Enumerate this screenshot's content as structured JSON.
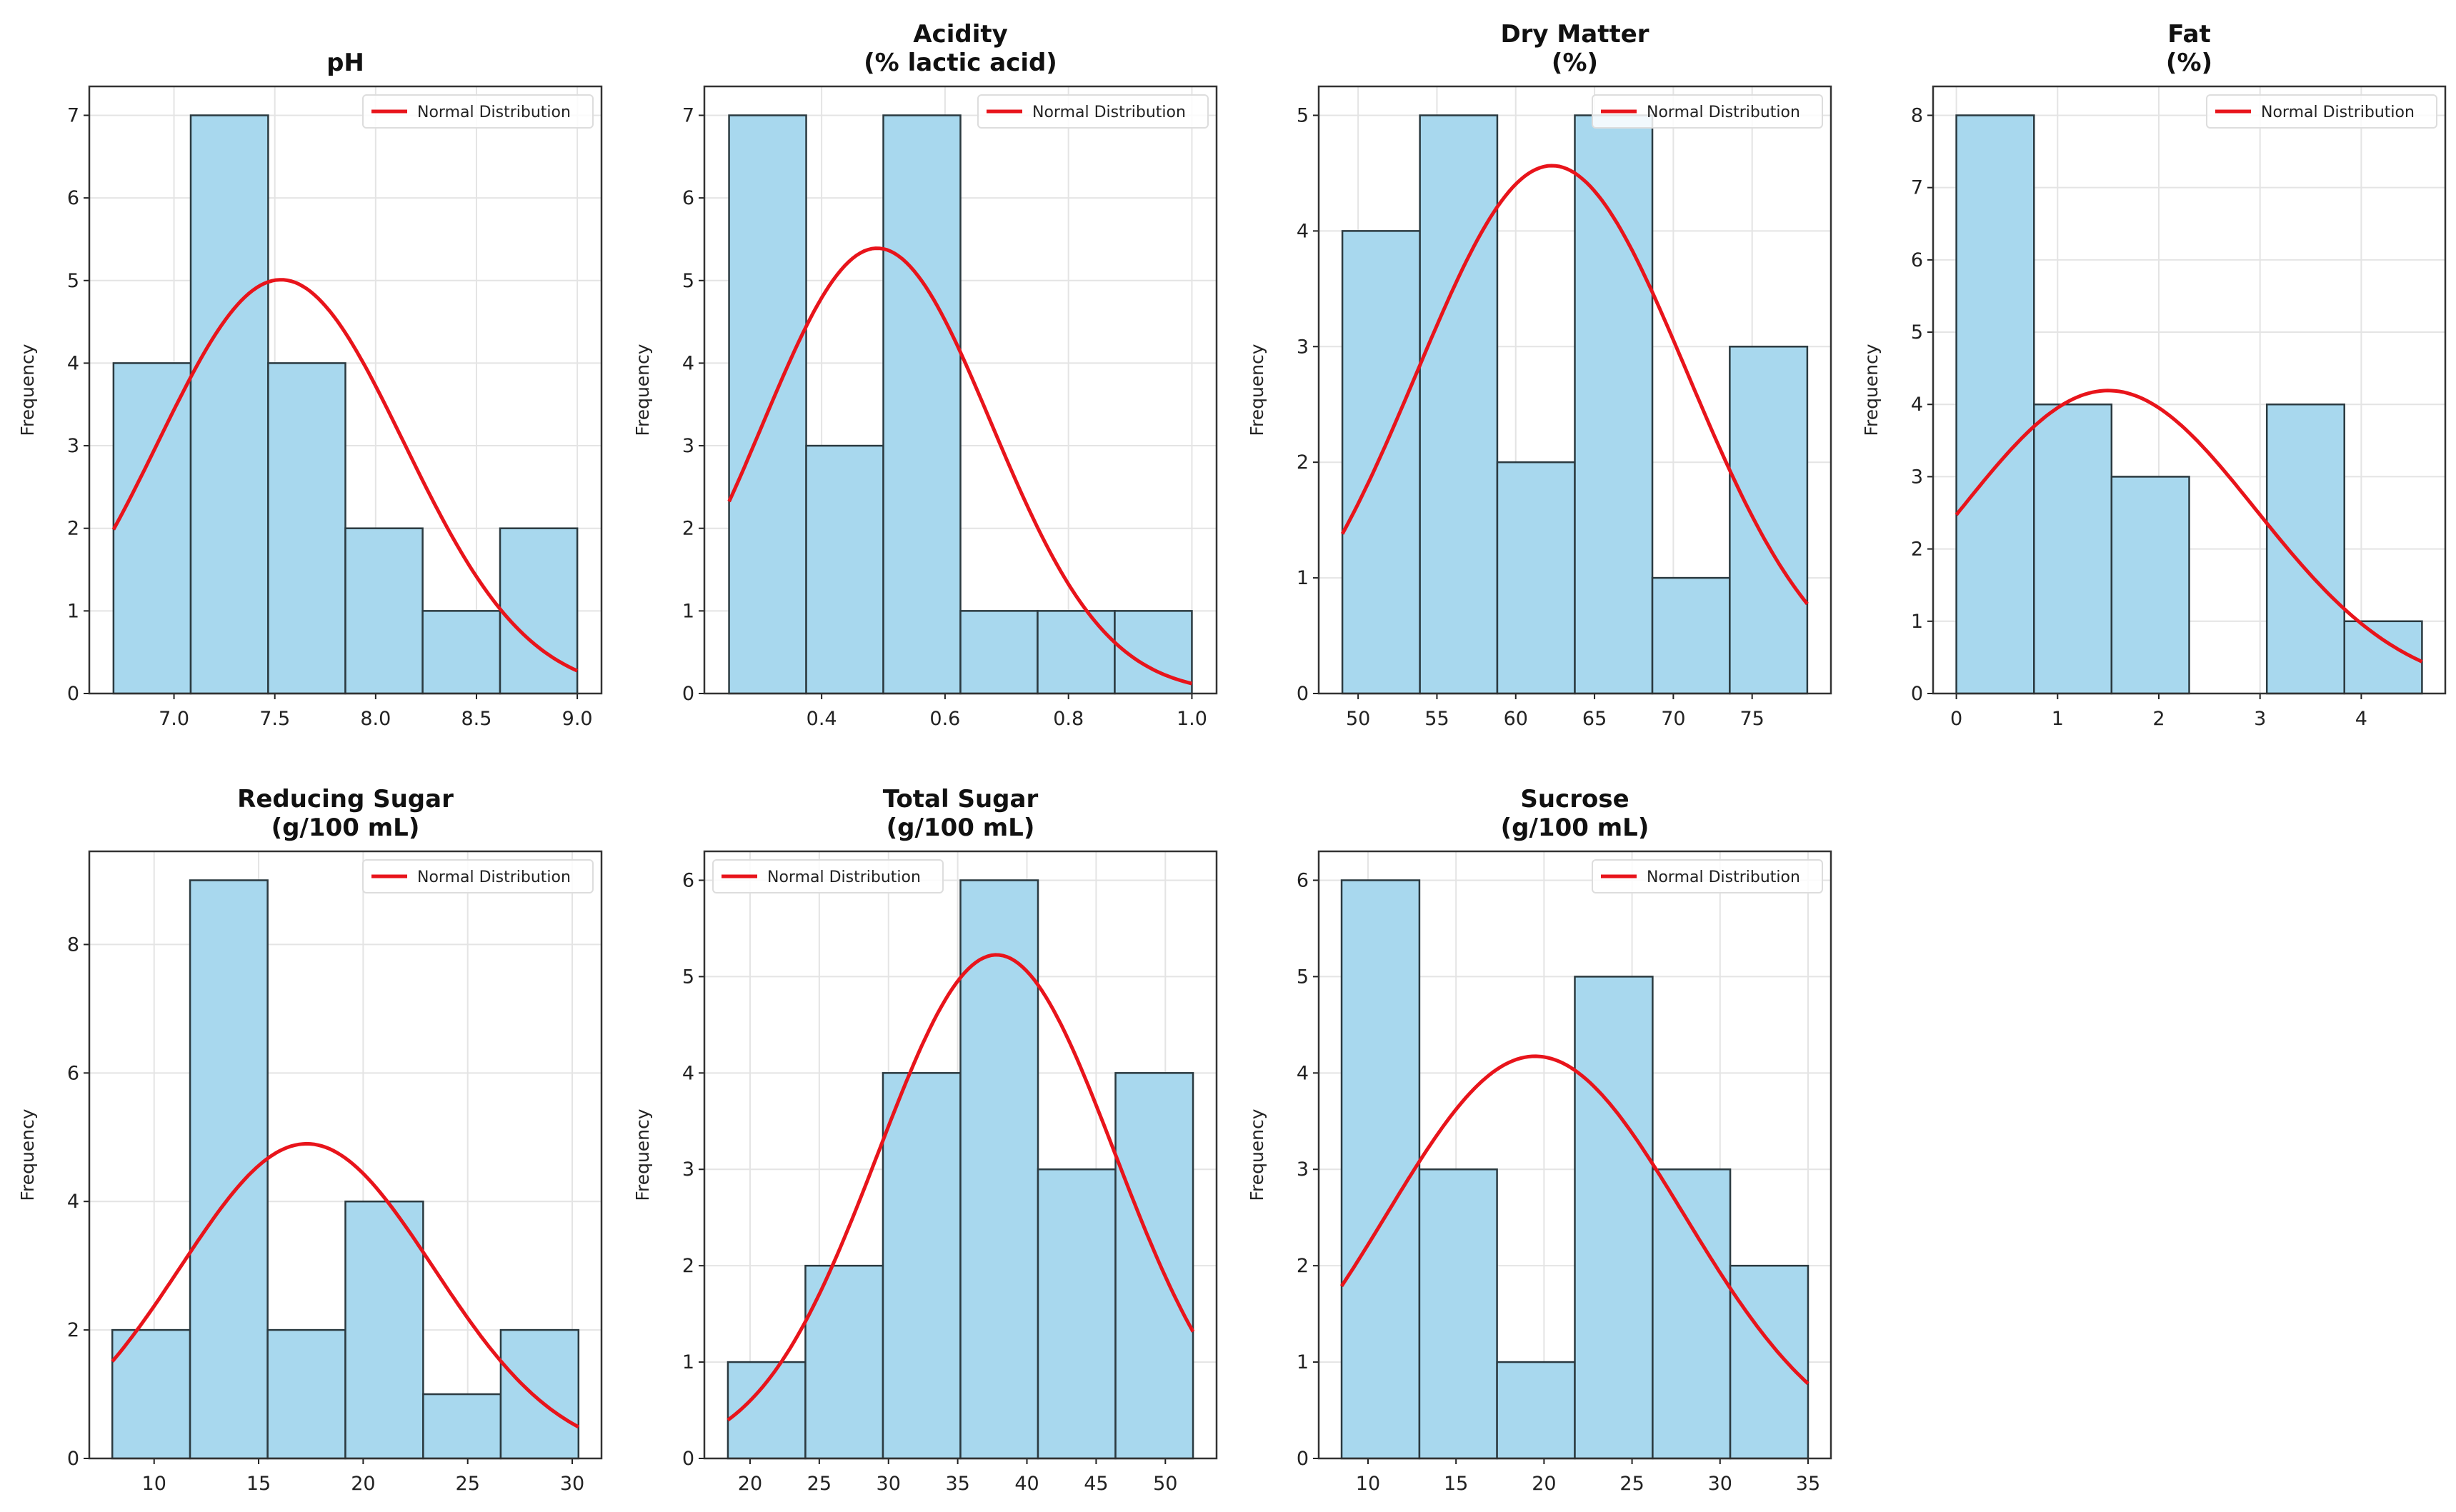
{
  "colors": {
    "bar": "#a8d8ee",
    "bar_edge": "#2b3a40",
    "curve": "#e8141b",
    "grid": "#e4e4e4"
  },
  "chart_data": [
    {
      "type": "bar",
      "title": [
        "pH"
      ],
      "ylabel": "Frequency",
      "legend": "Normal Distribution",
      "legend_placement": "top-right",
      "bin_edges": [
        6.7,
        7.083,
        7.467,
        7.85,
        8.233,
        8.617,
        9.0
      ],
      "values": [
        4,
        7,
        4,
        2,
        1,
        2
      ],
      "normal": {
        "mean": 7.53,
        "sd": 0.61,
        "n": 20
      },
      "xlim": [
        6.58,
        9.12
      ],
      "ylim": [
        0,
        7.35
      ],
      "xticks": [
        "7.0",
        "7.5",
        "8.0",
        "8.5",
        "9.0"
      ],
      "yticks": [
        "0",
        "1",
        "2",
        "3",
        "4",
        "5",
        "6",
        "7"
      ]
    },
    {
      "type": "bar",
      "title": [
        "Acidity",
        "(% lactic acid)"
      ],
      "ylabel": "Frequency",
      "legend": "Normal Distribution",
      "legend_placement": "top-right",
      "bin_edges": [
        0.25,
        0.375,
        0.5,
        0.625,
        0.75,
        0.875,
        1.0
      ],
      "values": [
        7,
        3,
        7,
        1,
        1,
        1
      ],
      "normal": {
        "mean": 0.49,
        "sd": 0.185,
        "n": 20
      },
      "xlim": [
        0.21,
        1.04
      ],
      "ylim": [
        0,
        7.35
      ],
      "xticks": [
        "0.4",
        "0.6",
        "0.8",
        "1.0"
      ],
      "yticks": [
        "0",
        "1",
        "2",
        "3",
        "4",
        "5",
        "6",
        "7"
      ]
    },
    {
      "type": "bar",
      "title": [
        "Dry Matter",
        "(%)"
      ],
      "ylabel": "Frequency",
      "legend": "Normal Distribution",
      "legend_placement": "top-right",
      "bin_edges": [
        49,
        53.92,
        58.83,
        63.75,
        68.67,
        73.58,
        78.5
      ],
      "values": [
        4,
        5,
        2,
        5,
        1,
        3
      ],
      "normal": {
        "mean": 62.3,
        "sd": 8.6,
        "n": 20
      },
      "xlim": [
        47.5,
        80
      ],
      "ylim": [
        0,
        5.25
      ],
      "xticks": [
        "50",
        "55",
        "60",
        "65",
        "70",
        "75"
      ],
      "yticks": [
        "0",
        "1",
        "2",
        "3",
        "4",
        "5"
      ]
    },
    {
      "type": "bar",
      "title": [
        "Fat",
        "(%)"
      ],
      "ylabel": "Frequency",
      "legend": "Normal Distribution",
      "legend_placement": "top-right",
      "bin_edges": [
        0,
        0.767,
        1.533,
        2.3,
        3.067,
        3.833,
        4.6
      ],
      "values": [
        8,
        4,
        3,
        0,
        4,
        1
      ],
      "normal": {
        "mean": 1.5,
        "sd": 1.46,
        "n": 20
      },
      "xlim": [
        -0.23,
        4.83
      ],
      "ylim": [
        0,
        8.4
      ],
      "xticks": [
        "0",
        "1",
        "2",
        "3",
        "4"
      ],
      "yticks": [
        "0",
        "1",
        "2",
        "3",
        "4",
        "5",
        "6",
        "7",
        "8"
      ]
    },
    {
      "type": "bar",
      "title": [
        "Reducing Sugar",
        "(g/100 mL)"
      ],
      "ylabel": "Frequency",
      "legend": "Normal Distribution",
      "legend_placement": "top-right",
      "bin_edges": [
        8,
        11.72,
        15.43,
        19.15,
        22.87,
        26.58,
        30.3
      ],
      "values": [
        2,
        9,
        2,
        4,
        1,
        2
      ],
      "normal": {
        "mean": 17.3,
        "sd": 6.06,
        "n": 20
      },
      "xlim": [
        6.9,
        31.4
      ],
      "ylim": [
        0,
        9.45
      ],
      "xticks": [
        "10",
        "15",
        "20",
        "25",
        "30"
      ],
      "yticks": [
        "0",
        "2",
        "4",
        "6",
        "8"
      ]
    },
    {
      "type": "bar",
      "title": [
        "Total Sugar",
        "(g/100 mL)"
      ],
      "ylabel": "Frequency",
      "legend": "Normal Distribution",
      "legend_placement": "top-left",
      "bin_edges": [
        18.4,
        24,
        29.6,
        35.2,
        40.8,
        46.4,
        52
      ],
      "values": [
        1,
        2,
        4,
        6,
        3,
        4
      ],
      "normal": {
        "mean": 37.8,
        "sd": 8.55,
        "n": 20
      },
      "xlim": [
        16.7,
        53.7
      ],
      "ylim": [
        0,
        6.3
      ],
      "xticks": [
        "20",
        "25",
        "30",
        "35",
        "40",
        "45",
        "50"
      ],
      "yticks": [
        "0",
        "1",
        "2",
        "3",
        "4",
        "5",
        "6"
      ]
    },
    {
      "type": "bar",
      "title": [
        "Sucrose",
        "(g/100 mL)"
      ],
      "ylabel": "Frequency",
      "legend": "Normal Distribution",
      "legend_placement": "top-right",
      "bin_edges": [
        8.5,
        12.92,
        17.33,
        21.75,
        26.17,
        30.58,
        35
      ],
      "values": [
        6,
        3,
        1,
        5,
        3,
        2
      ],
      "normal": {
        "mean": 19.5,
        "sd": 8.45,
        "n": 20
      },
      "xlim": [
        7.2,
        36.3
      ],
      "ylim": [
        0,
        6.3
      ],
      "xticks": [
        "10",
        "15",
        "20",
        "25",
        "30",
        "35"
      ],
      "yticks": [
        "0",
        "1",
        "2",
        "3",
        "4",
        "5",
        "6"
      ]
    }
  ]
}
